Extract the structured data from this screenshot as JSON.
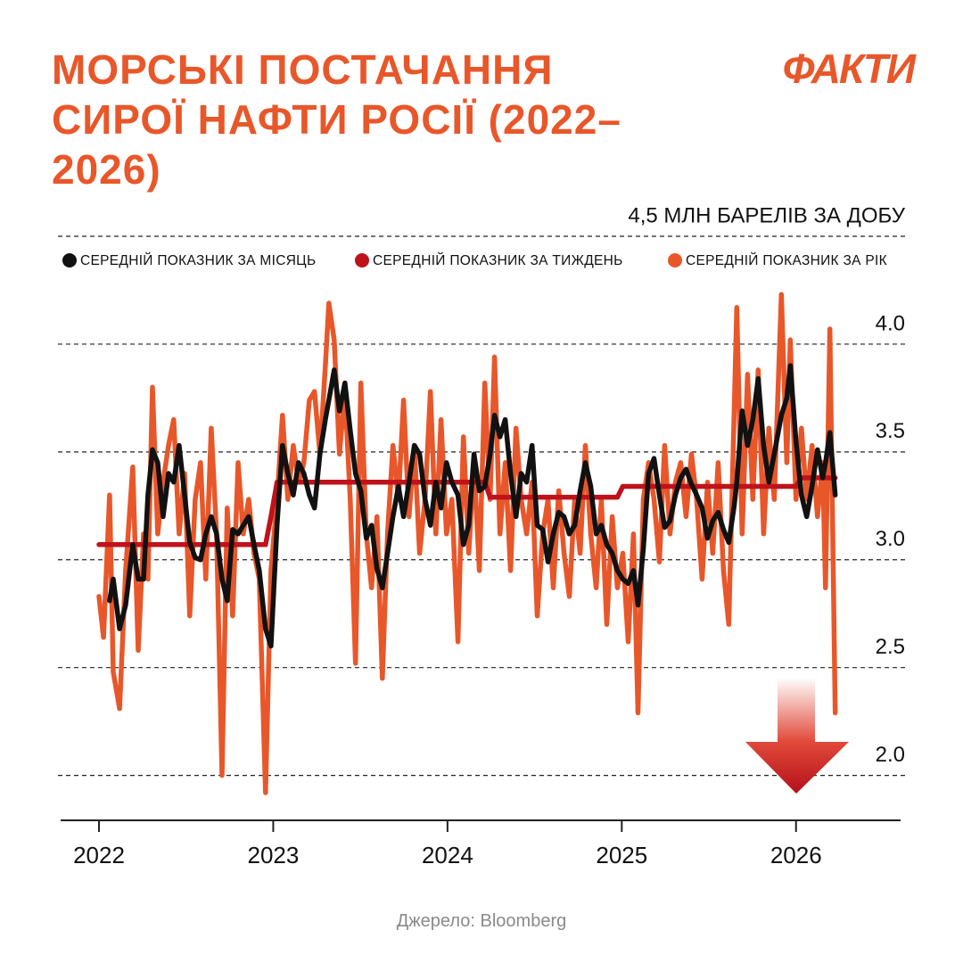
{
  "title": "МОРСЬКІ ПОСТАЧАННЯ СИРОЇ НАФТИ РОСІЇ (2022–2026)",
  "logo": "ФАКТИ",
  "source": "Джерело: Bloomberg",
  "chart_data": {
    "type": "line",
    "x": [
      2022,
      2022.026,
      2022.061,
      2022.082,
      2022.118,
      2022.153,
      2022.194,
      2022.225,
      2022.256,
      2022.281,
      2022.307,
      2022.337,
      2022.368,
      2022.399,
      2022.429,
      2022.46,
      2022.491,
      2022.521,
      2022.552,
      2022.583,
      2022.613,
      2022.644,
      2022.675,
      2022.706,
      2022.736,
      2022.767,
      2022.798,
      2022.828,
      2022.859,
      2022.89,
      2022.92,
      2022.956,
      2022.987,
      2023.022,
      2023.053,
      2023.084,
      2023.115,
      2023.145,
      2023.176,
      2023.207,
      2023.237,
      2023.268,
      2023.299,
      2023.319,
      2023.35,
      2023.38,
      2023.411,
      2023.442,
      2023.472,
      2023.503,
      2023.534,
      2023.564,
      2023.595,
      2023.626,
      2023.656,
      2023.687,
      2023.718,
      2023.748,
      2023.779,
      2023.81,
      2023.84,
      2023.871,
      2023.902,
      2023.933,
      2023.963,
      2023.994,
      2024.025,
      2024.06,
      2024.091,
      2024.122,
      2024.152,
      2024.183,
      2024.214,
      2024.244,
      2024.27,
      2024.301,
      2024.331,
      2024.362,
      2024.393,
      2024.423,
      2024.454,
      2024.485,
      2024.515,
      2024.546,
      2024.577,
      2024.607,
      2024.638,
      2024.669,
      2024.699,
      2024.73,
      2024.761,
      2024.791,
      2024.822,
      2024.853,
      2024.883,
      2024.914,
      2024.945,
      2024.975,
      2025.006,
      2025.037,
      2025.067,
      2025.093,
      2025.124,
      2025.154,
      2025.185,
      2025.216,
      2025.246,
      2025.277,
      2025.308,
      2025.338,
      2025.369,
      2025.4,
      2025.43,
      2025.461,
      2025.492,
      2025.522,
      2025.553,
      2025.584,
      2025.614,
      2025.645,
      2025.66,
      2025.691,
      2025.722,
      2025.752,
      2025.783,
      2025.814,
      2025.844,
      2025.875,
      2025.916,
      2025.947,
      2025.967,
      2026,
      2026.031,
      2026.061,
      2026.092,
      2026.123,
      2026.153,
      2026.169,
      2026.194,
      2026.225
    ],
    "series": [
      {
        "name": "СЕРЕДНІЙ ПОКАЗНИК ЗА МІСЯЦЬ",
        "color": "#111111",
        "values": [
          null,
          null,
          2.81,
          2.91,
          2.68,
          2.79,
          3.07,
          2.91,
          2.91,
          3.3,
          3.51,
          3.45,
          3.2,
          3.4,
          3.36,
          3.53,
          3.3,
          3.08,
          3.01,
          3.0,
          3.12,
          3.2,
          3.12,
          2.91,
          2.81,
          3.14,
          3.12,
          3.16,
          3.2,
          3.07,
          2.95,
          2.68,
          2.6,
          3.16,
          3.53,
          3.4,
          3.3,
          3.45,
          3.4,
          3.3,
          3.24,
          3.49,
          3.65,
          3.74,
          3.88,
          3.69,
          3.82,
          3.6,
          3.4,
          3.32,
          3.1,
          3.16,
          2.96,
          2.87,
          3.03,
          3.2,
          3.34,
          3.2,
          3.36,
          3.53,
          3.49,
          3.28,
          3.16,
          3.36,
          3.24,
          3.45,
          3.36,
          3.3,
          3.07,
          3.16,
          3.49,
          3.32,
          3.34,
          3.49,
          3.67,
          3.57,
          3.65,
          3.4,
          3.2,
          3.4,
          3.36,
          3.53,
          3.16,
          3.14,
          2.99,
          3.12,
          3.22,
          3.2,
          3.12,
          3.16,
          3.32,
          3.45,
          3.34,
          3.12,
          3.16,
          3.07,
          3.03,
          2.95,
          2.91,
          2.89,
          2.95,
          2.79,
          3.05,
          3.4,
          3.47,
          3.3,
          3.15,
          3.18,
          3.3,
          3.38,
          3.42,
          3.35,
          3.3,
          3.24,
          3.1,
          3.18,
          3.22,
          3.14,
          3.08,
          3.25,
          3.36,
          3.69,
          3.53,
          3.65,
          3.84,
          3.53,
          3.36,
          3.49,
          3.67,
          3.75,
          3.9,
          3.55,
          3.3,
          3.2,
          3.34,
          3.51,
          3.38,
          3.45,
          3.59,
          3.3
        ]
      },
      {
        "name": "СЕРЕДНІЙ ПОКАЗНИК ЗА ТИЖДЕНЬ",
        "color": "#c0121b",
        "values": [
          3.07,
          3.07,
          3.07,
          3.07,
          3.07,
          3.07,
          3.07,
          3.07,
          3.07,
          3.07,
          3.07,
          3.07,
          3.07,
          3.07,
          3.07,
          3.07,
          3.07,
          3.07,
          3.07,
          3.07,
          3.07,
          3.07,
          3.07,
          3.07,
          3.07,
          3.07,
          3.07,
          3.07,
          3.07,
          3.07,
          3.07,
          3.07,
          3.2,
          3.36,
          3.36,
          3.36,
          3.36,
          3.36,
          3.36,
          3.36,
          3.36,
          3.36,
          3.36,
          3.36,
          3.36,
          3.36,
          3.36,
          3.36,
          3.36,
          3.36,
          3.36,
          3.36,
          3.36,
          3.36,
          3.36,
          3.36,
          3.36,
          3.36,
          3.36,
          3.36,
          3.36,
          3.36,
          3.36,
          3.36,
          3.36,
          3.36,
          3.36,
          3.36,
          3.36,
          3.36,
          3.36,
          3.36,
          3.36,
          3.29,
          3.29,
          3.29,
          3.29,
          3.29,
          3.29,
          3.29,
          3.29,
          3.29,
          3.29,
          3.29,
          3.29,
          3.29,
          3.29,
          3.29,
          3.29,
          3.29,
          3.29,
          3.29,
          3.29,
          3.29,
          3.29,
          3.29,
          3.29,
          3.29,
          3.34,
          3.34,
          3.34,
          3.34,
          3.34,
          3.34,
          3.34,
          3.34,
          3.34,
          3.34,
          3.34,
          3.34,
          3.34,
          3.34,
          3.34,
          3.34,
          3.34,
          3.34,
          3.34,
          3.34,
          3.34,
          3.34,
          3.34,
          3.34,
          3.34,
          3.34,
          3.34,
          3.34,
          3.34,
          3.34,
          3.34,
          3.34,
          3.34,
          3.34,
          3.38,
          3.38,
          3.38,
          3.38,
          3.38,
          3.38,
          3.38,
          3.38
        ]
      },
      {
        "name": "СЕРЕДНІЙ ПОКАЗНИК ЗА РІК",
        "color": "#e8572a",
        "values": [
          2.83,
          2.64,
          3.3,
          2.48,
          2.31,
          2.95,
          3.43,
          2.58,
          3.12,
          2.91,
          3.8,
          3.12,
          3.36,
          3.53,
          3.65,
          3.12,
          3.4,
          2.74,
          3.28,
          3.45,
          2.91,
          3.61,
          3.12,
          2.0,
          3.24,
          2.74,
          3.45,
          3.12,
          3.28,
          3.03,
          2.91,
          1.92,
          2.95,
          3.28,
          3.67,
          3.28,
          3.53,
          3.36,
          3.45,
          3.74,
          3.78,
          3.49,
          3.9,
          4.19,
          4.02,
          3.49,
          3.78,
          3.28,
          2.52,
          3.82,
          3.12,
          2.87,
          3.2,
          2.45,
          3.12,
          3.53,
          3.28,
          3.74,
          3.2,
          3.53,
          3.03,
          3.28,
          3.78,
          3.12,
          3.65,
          3.12,
          3.28,
          2.62,
          3.57,
          3.03,
          3.45,
          2.95,
          3.82,
          3.28,
          3.94,
          3.12,
          3.45,
          2.95,
          3.61,
          3.28,
          3.12,
          3.36,
          2.74,
          3.12,
          3.28,
          2.87,
          3.32,
          3.03,
          2.83,
          3.28,
          3.03,
          3.53,
          3.12,
          2.87,
          3.28,
          2.7,
          3.2,
          2.87,
          3.03,
          2.62,
          3.12,
          2.29,
          3.28,
          3.45,
          3.28,
          2.99,
          3.53,
          3.12,
          3.36,
          3.45,
          3.2,
          3.49,
          3.28,
          2.91,
          3.36,
          3.03,
          3.45,
          2.95,
          2.7,
          3.69,
          4.17,
          3.12,
          3.86,
          3.28,
          3.88,
          3.12,
          3.61,
          3.28,
          4.23,
          3.45,
          4.02,
          3.28,
          3.61,
          3.28,
          3.53,
          3.2,
          3.45,
          2.87,
          4.07,
          2.29
        ]
      }
    ],
    "xlim": [
      2021.78,
      2026.6
    ],
    "xticks": [
      2022,
      2023,
      2024,
      2025,
      2026
    ],
    "ylim": [
      1.8,
      4.5
    ],
    "yticks": [
      {
        "value": 2,
        "label": "2.0"
      },
      2.5,
      {
        "value": 3,
        "label": "3.0"
      },
      3.5,
      {
        "value": 4,
        "label": "4.0"
      },
      {
        "value": 4.5,
        "label": "4,5 МЛН БАРЕЛІВ ЗА ДОБУ"
      }
    ],
    "grid": true
  }
}
